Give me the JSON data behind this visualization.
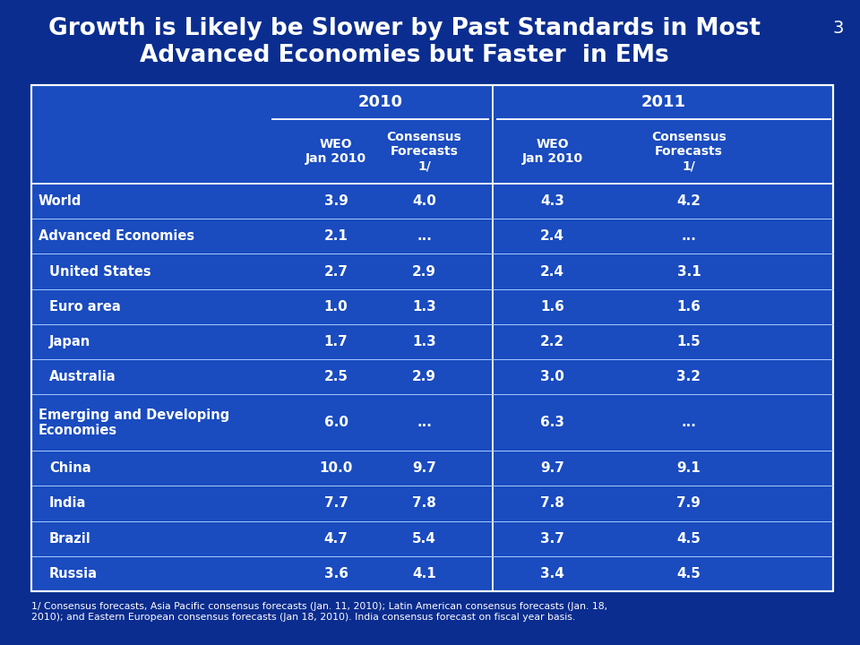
{
  "title": "Growth is Likely be Slower by Past Standards in Most\nAdvanced Economies but Faster  in EMs",
  "slide_number": "3",
  "bg_color": "#0a2d8f",
  "table_bg": "#1a4bbf",
  "border_color": "#ffffff",
  "text_color": "#ffffff",
  "col_header_2010": "2010",
  "col_header_2011": "2011",
  "sub_cols": [
    "WEO\nJan 2010",
    "Consensus\nForecasts\n1/",
    "WEO\nJan 2010",
    "Consensus\nForecasts\n1/"
  ],
  "rows": [
    {
      "label": "World",
      "indent": false,
      "vals": [
        "3.9",
        "4.0",
        "4.3",
        "4.2"
      ]
    },
    {
      "label": "Advanced Economies",
      "indent": false,
      "vals": [
        "2.1",
        "...",
        "2.4",
        "..."
      ]
    },
    {
      "label": "United States",
      "indent": true,
      "vals": [
        "2.7",
        "2.9",
        "2.4",
        "3.1"
      ]
    },
    {
      "label": "Euro area",
      "indent": true,
      "vals": [
        "1.0",
        "1.3",
        "1.6",
        "1.6"
      ]
    },
    {
      "label": "Japan",
      "indent": true,
      "vals": [
        "1.7",
        "1.3",
        "2.2",
        "1.5"
      ]
    },
    {
      "label": "Australia",
      "indent": true,
      "vals": [
        "2.5",
        "2.9",
        "3.0",
        "3.2"
      ]
    },
    {
      "label": "Emerging and Developing\nEconomies",
      "indent": false,
      "vals": [
        "6.0",
        "...",
        "6.3",
        "..."
      ]
    },
    {
      "label": "China",
      "indent": true,
      "vals": [
        "10.0",
        "9.7",
        "9.7",
        "9.1"
      ]
    },
    {
      "label": "India",
      "indent": true,
      "vals": [
        "7.7",
        "7.8",
        "7.8",
        "7.9"
      ]
    },
    {
      "label": "Brazil",
      "indent": true,
      "vals": [
        "4.7",
        "5.4",
        "3.7",
        "4.5"
      ]
    },
    {
      "label": "Russia",
      "indent": true,
      "vals": [
        "3.6",
        "4.1",
        "3.4",
        "4.5"
      ]
    }
  ],
  "footnote": "1/ Consensus forecasts, Asia Pacific consensus forecasts (Jan. 11, 2010); Latin American consensus forecasts (Jan. 18,\n2010); and Eastern European consensus forecasts (Jan 18, 2010). India consensus forecast on fiscal year basis."
}
